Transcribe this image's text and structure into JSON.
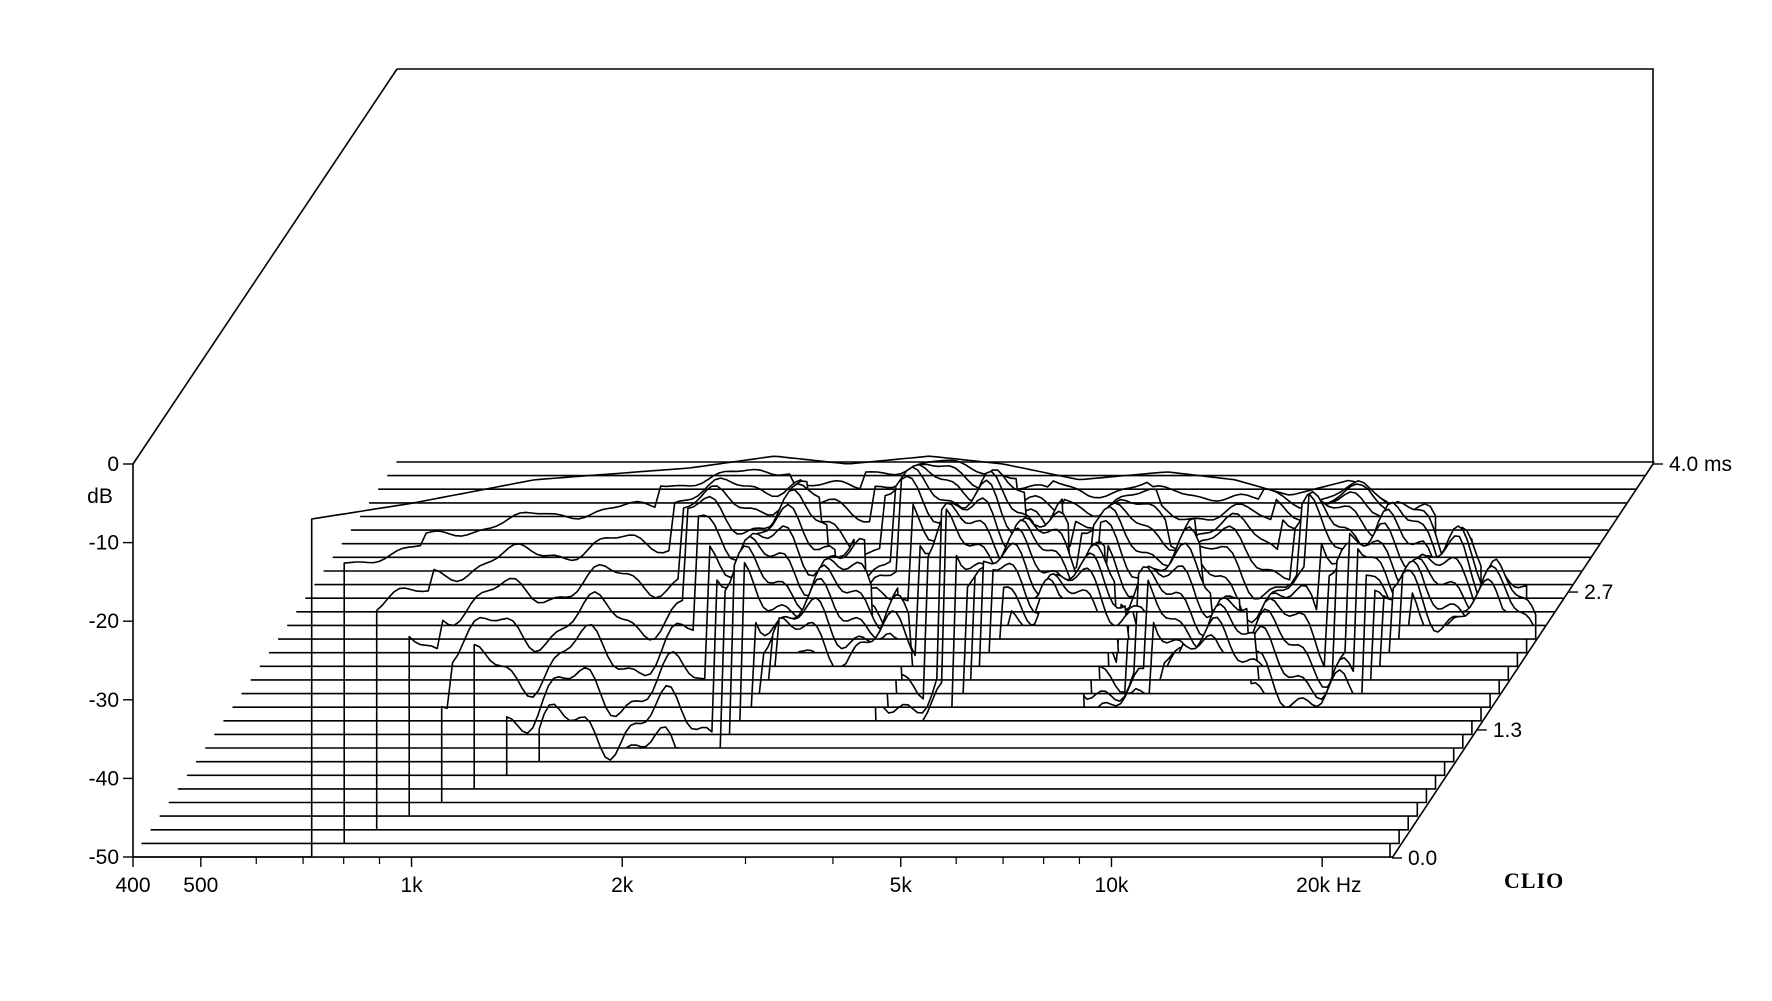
{
  "chart_data": {
    "type": "waterfall",
    "brand": "CLIO",
    "y_axis": {
      "unit_label": "dB",
      "ticks": [
        "0",
        "-10",
        "-20",
        "-30",
        "-40",
        "-50"
      ],
      "range_db": [
        -50,
        0
      ]
    },
    "x_axis": {
      "scale": "log",
      "range_hz": [
        400,
        26000
      ],
      "tick_labels": [
        {
          "hz": 400,
          "label": "400"
        },
        {
          "hz": 500,
          "label": "500"
        },
        {
          "hz": 1000,
          "label": "1k"
        },
        {
          "hz": 2000,
          "label": "2k"
        },
        {
          "hz": 5000,
          "label": "5k"
        },
        {
          "hz": 10000,
          "label": "10k"
        },
        {
          "hz": 20000,
          "label": "20k Hz"
        }
      ],
      "minor_ticks_hz": [
        600,
        700,
        800,
        900,
        3000,
        4000,
        6000,
        7000,
        8000,
        9000
      ]
    },
    "z_axis": {
      "unit": "ms",
      "range_ms": [
        0,
        4.0
      ],
      "tick_labels": [
        {
          "ms": 0.0,
          "label": "0.0"
        },
        {
          "ms": 1.3,
          "label": "1.3"
        },
        {
          "ms": 2.7,
          "label": "2.7"
        },
        {
          "ms": 4.0,
          "label": "4.0  ms"
        }
      ],
      "slice_count": 30
    },
    "first_slice_profile": [
      {
        "hz": 720,
        "db": -7
      },
      {
        "hz": 1000,
        "db": -5
      },
      {
        "hz": 1500,
        "db": -2
      },
      {
        "hz": 2500,
        "db": -0.5
      },
      {
        "hz": 3300,
        "db": 1
      },
      {
        "hz": 4200,
        "db": 0
      },
      {
        "hz": 5500,
        "db": 1
      },
      {
        "hz": 7000,
        "db": 0
      },
      {
        "hz": 9000,
        "db": -2
      },
      {
        "hz": 12000,
        "db": -1
      },
      {
        "hz": 15000,
        "db": -2
      },
      {
        "hz": 18000,
        "db": -4
      },
      {
        "hz": 22000,
        "db": -2
      },
      {
        "hz": 26000,
        "db": -6
      }
    ]
  }
}
